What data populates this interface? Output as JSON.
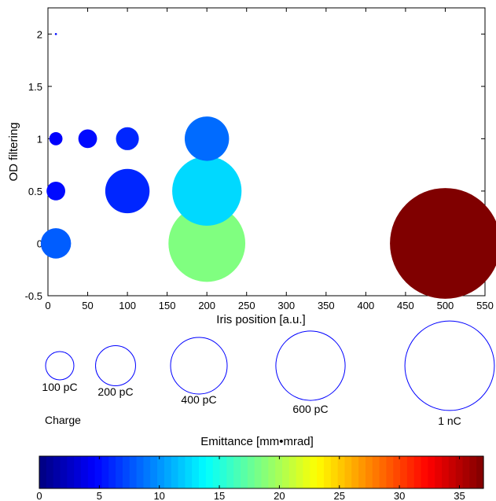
{
  "chart_data": {
    "type": "scatter",
    "title": "",
    "xlabel": "Iris position [a.u.]",
    "ylabel": "OD filtering",
    "xlim": [
      0,
      550
    ],
    "ylim": [
      -0.5,
      2.25
    ],
    "xticks": [
      0,
      50,
      100,
      150,
      200,
      250,
      300,
      350,
      400,
      450,
      500,
      550
    ],
    "xtick_labels": [
      "0",
      "50",
      "100",
      "150",
      "200",
      "250",
      "300",
      "350",
      "400",
      "450",
      "500",
      "550"
    ],
    "yticks": [
      -0.5,
      0,
      0.5,
      1,
      1.5,
      2
    ],
    "ytick_labels": [
      "-0.5",
      "0",
      "0.5",
      "1",
      "1.5",
      "2"
    ],
    "grid": false,
    "size_encoding": "Charge [pC]",
    "color_encoding": "Emittance [mm•mrad]",
    "points": [
      {
        "x": 10,
        "y": 2,
        "charge_pc": 1,
        "emittance": 5
      },
      {
        "x": 10,
        "y": 1,
        "charge_pc": 40,
        "emittance": 4.5
      },
      {
        "x": 50,
        "y": 1,
        "charge_pc": 80,
        "emittance": 5
      },
      {
        "x": 100,
        "y": 1,
        "charge_pc": 120,
        "emittance": 6
      },
      {
        "x": 200,
        "y": 1,
        "charge_pc": 450,
        "emittance": 8.5
      },
      {
        "x": 10,
        "y": 0.5,
        "charge_pc": 80,
        "emittance": 5
      },
      {
        "x": 100,
        "y": 0.5,
        "charge_pc": 450,
        "emittance": 6
      },
      {
        "x": 200,
        "y": 0.5,
        "charge_pc": 1100,
        "emittance": 12.5
      },
      {
        "x": 10,
        "y": 0,
        "charge_pc": 210,
        "emittance": 8
      },
      {
        "x": 200,
        "y": 0,
        "charge_pc": 1350,
        "emittance": 18.5
      },
      {
        "x": 500,
        "y": 0,
        "charge_pc": 2800,
        "emittance": 37
      }
    ],
    "size_legend": {
      "title": "Charge",
      "entries": [
        {
          "label": "100 pC",
          "charge_pc": 100
        },
        {
          "label": "200 pC",
          "charge_pc": 200
        },
        {
          "label": "400 pC",
          "charge_pc": 400
        },
        {
          "label": "600 pC",
          "charge_pc": 600
        },
        {
          "label": "1 nC",
          "charge_pc": 1000
        }
      ]
    },
    "colorbar": {
      "label": "Emittance [mm•mrad]",
      "range": [
        0,
        37
      ],
      "ticks": [
        0,
        5,
        10,
        15,
        20,
        25,
        30,
        35
      ],
      "tick_labels": [
        "0",
        "5",
        "10",
        "15",
        "20",
        "25",
        "30",
        "35"
      ],
      "colormap": "jet"
    },
    "colors": {
      "axis": "#000000",
      "legend_circle": "#0000ff"
    }
  }
}
